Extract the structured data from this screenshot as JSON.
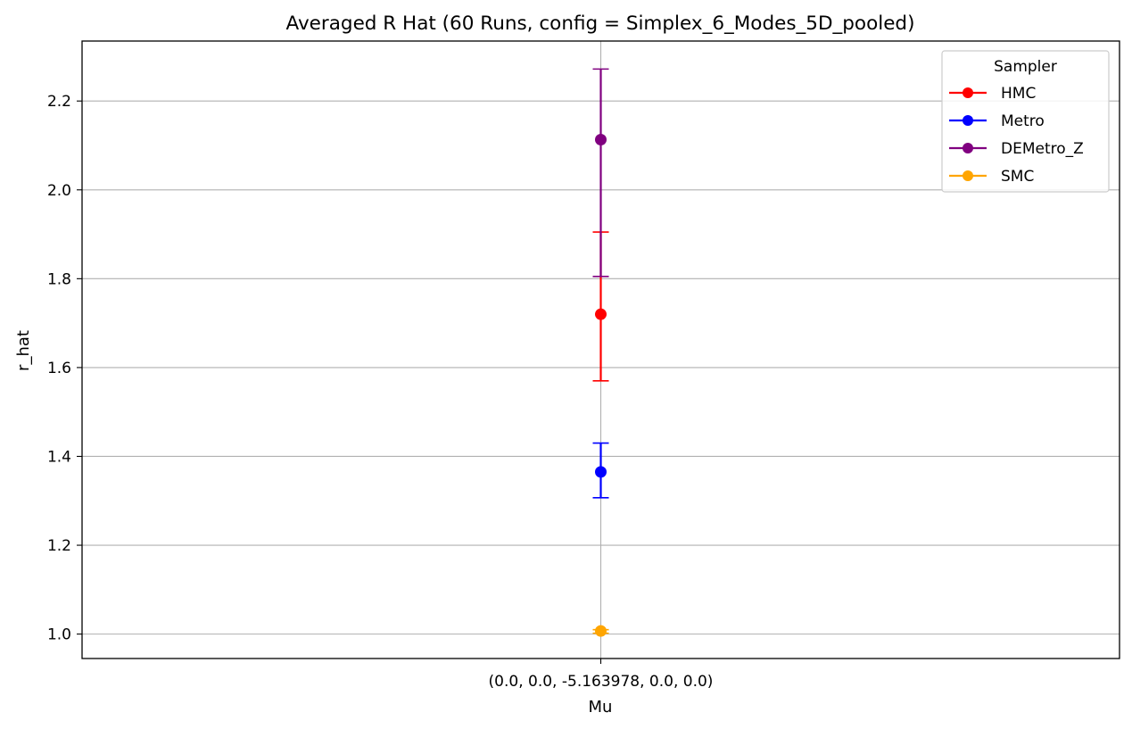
{
  "chart_data": {
    "type": "scatter",
    "title": "Averaged R Hat (60 Runs, config = Simplex_6_Modes_5D_pooled)",
    "xlabel": "Mu",
    "ylabel": "r_hat",
    "categories": [
      "(0.0, 0.0, -5.163978, 0.0, 0.0)"
    ],
    "ylim": [
      0.945,
      2.335
    ],
    "yticks": [
      "1.0",
      "1.2",
      "1.4",
      "1.6",
      "1.8",
      "2.0",
      "2.2"
    ],
    "grid": true,
    "legend": {
      "title": "Sampler",
      "position": "top-right"
    },
    "series": [
      {
        "name": "HMC",
        "color": "#ff0000",
        "value": 1.72,
        "err_low": 1.57,
        "err_high": 1.905
      },
      {
        "name": "Metro",
        "color": "#0000ff",
        "value": 1.365,
        "err_low": 1.307,
        "err_high": 1.43
      },
      {
        "name": "DEMetro_Z",
        "color": "#800080",
        "value": 2.113,
        "err_low": 1.805,
        "err_high": 2.272
      },
      {
        "name": "SMC",
        "color": "#ffa500",
        "value": 1.007,
        "err_low": 1.002,
        "err_high": 1.01
      }
    ]
  }
}
